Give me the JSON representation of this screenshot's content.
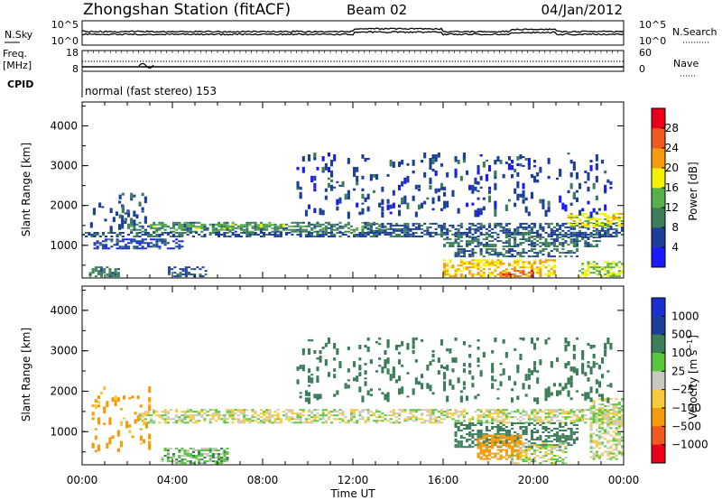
{
  "header": {
    "station": "Zhongshan Station (fitACF)",
    "beam": "Beam 02",
    "date": "04/Jan/2012"
  },
  "status_panels": {
    "noise": {
      "left_label": "N.Sky",
      "right_label": "N.Search",
      "left_ticks": [
        "10^5",
        "10^0"
      ],
      "right_ticks": [
        "10^5",
        "10^0"
      ]
    },
    "freq": {
      "left_label_line1": "Freq.",
      "left_label_line2": "[MHz]",
      "right_label": "Nave",
      "left_ticks": [
        "18",
        "8"
      ],
      "right_ticks": [
        "60",
        "0"
      ]
    },
    "cpid": {
      "label": "CPID",
      "mode_text": "normal (fast stereo) 153"
    }
  },
  "colors": {
    "power_scale": [
      "#1a1aff",
      "#1c3f9a",
      "#3c7d5a",
      "#57b04a",
      "#f5f000",
      "#f59a0a",
      "#f05a1e",
      "#e8001a"
    ],
    "velocity_scale": [
      "#e8001a",
      "#f05a1e",
      "#f59a0a",
      "#f7c93c",
      "#c8c8c0",
      "#57c83c",
      "#3c7d5a",
      "#1c3f9a",
      "#1a2fcf"
    ],
    "velocity_scatter": {
      "gray": "#c8c8c0",
      "green": "#3c8c50",
      "lime": "#6ac832",
      "orange": "#f59a0a",
      "red": "#e04010",
      "blue": "#2040c0"
    }
  },
  "chart_data": [
    {
      "type": "heatmap",
      "name": "Power",
      "ylabel": "Slant Range [km]",
      "yticks": [
        1000,
        2000,
        3000,
        4000
      ],
      "ylim": [
        180,
        4600
      ],
      "x": {
        "label": "Time UT",
        "ticks": [
          "00:00",
          "04:00",
          "08:00",
          "12:00",
          "16:00",
          "20:00",
          "00:00"
        ],
        "range_hours": [
          0,
          24
        ]
      },
      "colorbar": {
        "title": "Power [dB]",
        "range": [
          0,
          32
        ],
        "ticks": [
          4,
          8,
          12,
          16,
          20,
          24,
          28
        ]
      },
      "echo_regions": [
        {
          "t": [
            0.1,
            2.0
          ],
          "r": [
            1400,
            2100
          ],
          "v": 6
        },
        {
          "t": [
            1.5,
            3.0
          ],
          "r": [
            1600,
            2300
          ],
          "v": 7
        },
        {
          "t": [
            2.0,
            13.5
          ],
          "r": [
            1320,
            1560
          ],
          "v": 10
        },
        {
          "t": [
            3.0,
            9.0
          ],
          "r": [
            1400,
            1500
          ],
          "v": 14
        },
        {
          "t": [
            0.0,
            24.0
          ],
          "r": [
            1200,
            1300
          ],
          "v": 7
        },
        {
          "t": [
            0.5,
            4.5
          ],
          "r": [
            900,
            1150
          ],
          "v": 6
        },
        {
          "t": [
            12.5,
            24.0
          ],
          "r": [
            1250,
            1550
          ],
          "v": 7
        },
        {
          "t": [
            16.0,
            23.0
          ],
          "r": [
            950,
            1200
          ],
          "v": 9
        },
        {
          "t": [
            16.5,
            22.0
          ],
          "r": [
            700,
            900
          ],
          "v": 8
        },
        {
          "t": [
            16.0,
            21.0
          ],
          "r": [
            200,
            650
          ],
          "v": 20
        },
        {
          "t": [
            18.5,
            20.0
          ],
          "r": [
            200,
            380
          ],
          "v": 26
        },
        {
          "t": [
            21.5,
            24.0
          ],
          "r": [
            1450,
            1800
          ],
          "v": 18
        },
        {
          "t": [
            22.0,
            24.0
          ],
          "r": [
            200,
            600
          ],
          "v": 16
        },
        {
          "t": [
            3.8,
            5.5
          ],
          "r": [
            200,
            450
          ],
          "v": 7
        },
        {
          "t": [
            0.3,
            1.6
          ],
          "r": [
            200,
            450
          ],
          "v": 10
        },
        {
          "t": [
            9.5,
            23.5
          ],
          "r": [
            1800,
            3300
          ],
          "v": 6
        }
      ]
    },
    {
      "type": "heatmap",
      "name": "Velocity",
      "ylabel": "Slant Range [km]",
      "yticks": [
        1000,
        2000,
        3000,
        4000
      ],
      "ylim": [
        180,
        4600
      ],
      "x": {
        "label": "Time UT",
        "ticks": [
          "00:00",
          "04:00",
          "08:00",
          "12:00",
          "16:00",
          "20:00",
          "00:00"
        ],
        "range_hours": [
          0,
          24
        ]
      },
      "colorbar": {
        "title": "Velocity [m s^-1]",
        "levels": [
          -1000,
          -500,
          -100,
          -25,
          25,
          100,
          500,
          1000
        ],
        "tick_labels": [
          "1000",
          "500",
          "100",
          "25",
          "−25",
          "−100",
          "−500",
          "−1000"
        ]
      },
      "echo_regions": [
        {
          "t": [
            2.5,
            24.0
          ],
          "r": [
            1200,
            1550
          ],
          "v": 0
        },
        {
          "t": [
            16.5,
            22.0
          ],
          "r": [
            600,
            1200
          ],
          "v": 300
        },
        {
          "t": [
            19.0,
            21.5
          ],
          "r": [
            200,
            700
          ],
          "v": 0
        },
        {
          "t": [
            17.5,
            19.5
          ],
          "r": [
            300,
            900
          ],
          "v": -200
        },
        {
          "t": [
            3.5,
            6.5
          ],
          "r": [
            200,
            600
          ],
          "v": 60
        },
        {
          "t": [
            0.3,
            3.0
          ],
          "r": [
            500,
            2100
          ],
          "v": -150
        },
        {
          "t": [
            22.5,
            24.0
          ],
          "r": [
            300,
            1800
          ],
          "v": 0
        },
        {
          "t": [
            9.5,
            23.5
          ],
          "r": [
            1800,
            3300
          ],
          "v": 200
        }
      ]
    }
  ]
}
